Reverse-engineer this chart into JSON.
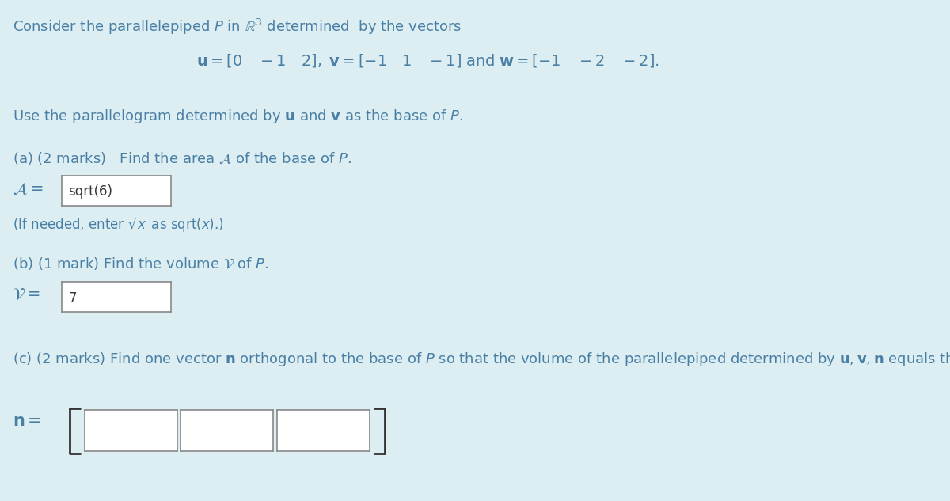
{
  "background_color": "#dceef2",
  "text_color": "#4a7fa5",
  "font_size_main": 13,
  "font_size_vectors": 14,
  "box_color": "#ffffff",
  "box_border": "#888888",
  "title_line1": "Consider the parallelepiped $P$ in $\\mathbb{R}^3$ determined  by the vectors",
  "vectors_line": "$\\mathbf{u} = [0 \\quad -1 \\quad 2], \\; \\mathbf{v} = [-1 \\quad 1 \\quad -1] \\; \\mathrm{and} \\; \\mathbf{w} = [-1 \\quad -2 \\quad -2].$",
  "base_line": "Use the parallelogram determined by $\\mathbf{u}$ and $\\mathbf{v}$ as the base of $P$.",
  "part_a_label": "(a) (2 marks)   Find the area $\\mathcal{A}$ of the base of $P$.",
  "part_a_eq_left": "$\\mathcal{A} =$",
  "part_a_answer": "sqrt(6)",
  "part_a_hint": "(If needed, enter $\\sqrt{x}$ as sqrt$(x)$.)",
  "part_b_label": "(b) (1 mark) Find the volume $\\mathcal{V}$ of $P$.",
  "part_b_eq_left": "$\\mathcal{V} =$",
  "part_b_answer": "7",
  "part_c_label": "(c) (2 marks) Find one vector $\\mathbf{n}$ orthogonal to the base of $P$ so that the volume of the parallelepiped determined by $\\mathbf{u}, \\mathbf{v}, \\mathbf{n}$ equals the volume of $P$ .",
  "part_c_eq_left": "$\\mathbf{n} =$"
}
